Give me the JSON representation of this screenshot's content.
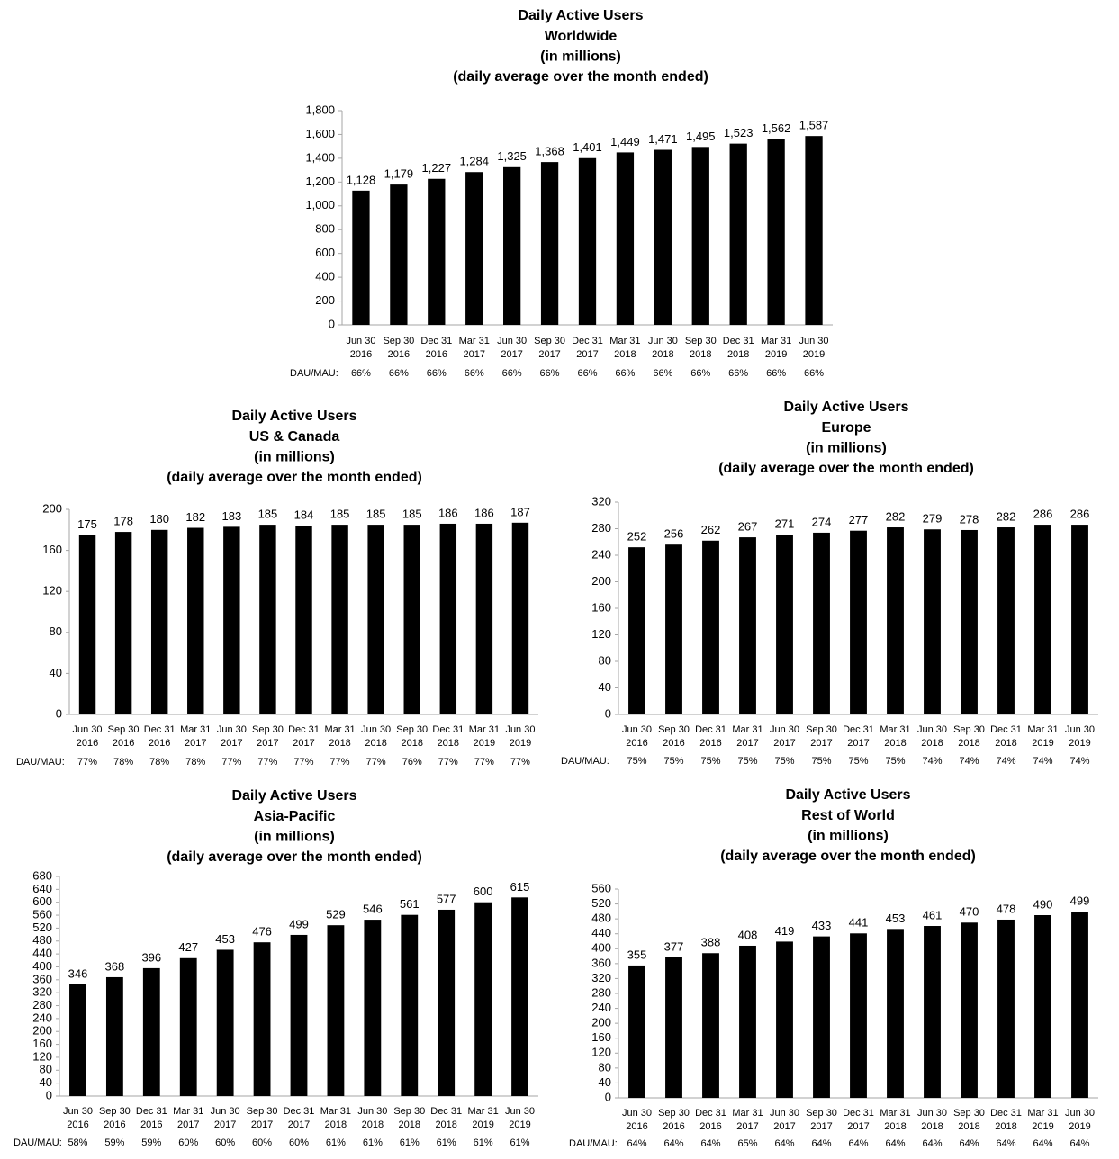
{
  "chart_data": [
    {
      "type": "bar",
      "title": [
        "Daily Active Users",
        "Worldwide",
        "(in millions)",
        "(daily average over the month ended)"
      ],
      "categories": [
        [
          "Jun 30",
          "2016"
        ],
        [
          "Sep 30",
          "2016"
        ],
        [
          "Dec 31",
          "2016"
        ],
        [
          "Mar 31",
          "2017"
        ],
        [
          "Jun 30",
          "2017"
        ],
        [
          "Sep 30",
          "2017"
        ],
        [
          "Dec 31",
          "2017"
        ],
        [
          "Mar 31",
          "2018"
        ],
        [
          "Jun 30",
          "2018"
        ],
        [
          "Sep 30",
          "2018"
        ],
        [
          "Dec 31",
          "2018"
        ],
        [
          "Mar 31",
          "2019"
        ],
        [
          "Jun 30",
          "2019"
        ]
      ],
      "values": [
        1128,
        1179,
        1227,
        1284,
        1325,
        1368,
        1401,
        1449,
        1471,
        1495,
        1523,
        1562,
        1587
      ],
      "value_labels": [
        "1,128",
        "1,179",
        "1,227",
        "1,284",
        "1,325",
        "1,368",
        "1,401",
        "1,449",
        "1,471",
        "1,495",
        "1,523",
        "1,562",
        "1,587"
      ],
      "color": "#000000",
      "ylim": [
        0,
        1800
      ],
      "yticks": [
        0,
        200,
        400,
        600,
        800,
        {
          "value": 1000,
          "label": "1,000"
        },
        {
          "value": 1200,
          "label": "1,200"
        },
        {
          "value": 1400,
          "label": "1,400"
        },
        {
          "value": 1600,
          "label": "1,600"
        },
        {
          "value": 1800,
          "label": "1,800"
        }
      ],
      "dau_mau": {
        "label": "DAU/MAU:",
        "values": [
          66,
          66,
          66,
          66,
          66,
          66,
          66,
          66,
          66,
          66,
          66,
          66,
          66
        ],
        "value_labels": [
          "66%",
          "66%",
          "66%",
          "66%",
          "66%",
          "66%",
          "66%",
          "66%",
          "66%",
          "66%",
          "66%",
          "66%",
          "66%"
        ]
      }
    },
    {
      "type": "bar",
      "title": [
        "Daily Active Users",
        "US & Canada",
        "(in millions)",
        "(daily average over the month ended)"
      ],
      "categories": [
        [
          "Jun 30",
          "2016"
        ],
        [
          "Sep 30",
          "2016"
        ],
        [
          "Dec 31",
          "2016"
        ],
        [
          "Mar 31",
          "2017"
        ],
        [
          "Jun 30",
          "2017"
        ],
        [
          "Sep 30",
          "2017"
        ],
        [
          "Dec 31",
          "2017"
        ],
        [
          "Mar 31",
          "2018"
        ],
        [
          "Jun 30",
          "2018"
        ],
        [
          "Sep 30",
          "2018"
        ],
        [
          "Dec 31",
          "2018"
        ],
        [
          "Mar 31",
          "2019"
        ],
        [
          "Jun 30",
          "2019"
        ]
      ],
      "values": [
        175,
        178,
        180,
        182,
        183,
        185,
        184,
        185,
        185,
        185,
        186,
        186,
        187
      ],
      "color": "#000000",
      "ylim": [
        0,
        200
      ],
      "yticks": [
        0,
        40,
        80,
        120,
        160,
        200
      ],
      "dau_mau": {
        "label": "DAU/MAU:",
        "values": [
          77,
          78,
          78,
          78,
          77,
          77,
          77,
          77,
          77,
          76,
          77,
          77,
          77
        ],
        "value_labels": [
          "77%",
          "78%",
          "78%",
          "78%",
          "77%",
          "77%",
          "77%",
          "77%",
          "77%",
          "76%",
          "77%",
          "77%",
          "77%"
        ]
      }
    },
    {
      "type": "bar",
      "title": [
        "Daily Active Users",
        "Europe",
        "(in millions)",
        "(daily average over the month ended)"
      ],
      "categories": [
        [
          "Jun 30",
          "2016"
        ],
        [
          "Sep 30",
          "2016"
        ],
        [
          "Dec 31",
          "2016"
        ],
        [
          "Mar 31",
          "2017"
        ],
        [
          "Jun 30",
          "2017"
        ],
        [
          "Sep 30",
          "2017"
        ],
        [
          "Dec 31",
          "2017"
        ],
        [
          "Mar 31",
          "2018"
        ],
        [
          "Jun 30",
          "2018"
        ],
        [
          "Sep 30",
          "2018"
        ],
        [
          "Dec 31",
          "2018"
        ],
        [
          "Mar 31",
          "2019"
        ],
        [
          "Jun 30",
          "2019"
        ]
      ],
      "values": [
        252,
        256,
        262,
        267,
        271,
        274,
        277,
        282,
        279,
        278,
        282,
        286,
        286
      ],
      "color": "#000000",
      "ylim": [
        0,
        320
      ],
      "yticks": [
        0,
        40,
        80,
        120,
        160,
        200,
        240,
        280,
        320
      ],
      "dau_mau": {
        "label": "DAU/MAU:",
        "values": [
          75,
          75,
          75,
          75,
          75,
          75,
          75,
          75,
          74,
          74,
          74,
          74,
          74
        ],
        "value_labels": [
          "75%",
          "75%",
          "75%",
          "75%",
          "75%",
          "75%",
          "75%",
          "75%",
          "74%",
          "74%",
          "74%",
          "74%",
          "74%"
        ]
      }
    },
    {
      "type": "bar",
      "title": [
        "Daily Active Users",
        "Asia-Pacific",
        "(in millions)",
        "(daily average over the month ended)"
      ],
      "categories": [
        [
          "Jun 30",
          "2016"
        ],
        [
          "Sep 30",
          "2016"
        ],
        [
          "Dec 31",
          "2016"
        ],
        [
          "Mar 31",
          "2017"
        ],
        [
          "Jun 30",
          "2017"
        ],
        [
          "Sep 30",
          "2017"
        ],
        [
          "Dec 31",
          "2017"
        ],
        [
          "Mar 31",
          "2018"
        ],
        [
          "Jun 30",
          "2018"
        ],
        [
          "Sep 30",
          "2018"
        ],
        [
          "Dec 31",
          "2018"
        ],
        [
          "Mar 31",
          "2019"
        ],
        [
          "Jun 30",
          "2019"
        ]
      ],
      "values": [
        346,
        368,
        396,
        427,
        453,
        476,
        499,
        529,
        546,
        561,
        577,
        600,
        615
      ],
      "color": "#000000",
      "ylim": [
        0,
        680
      ],
      "yticks": [
        0,
        40,
        80,
        120,
        160,
        200,
        240,
        280,
        320,
        360,
        400,
        440,
        480,
        520,
        560,
        600,
        640,
        680
      ],
      "dau_mau": {
        "label": "DAU/MAU:",
        "values": [
          58,
          59,
          59,
          60,
          60,
          60,
          60,
          61,
          61,
          61,
          61,
          61,
          61
        ],
        "value_labels": [
          "58%",
          "59%",
          "59%",
          "60%",
          "60%",
          "60%",
          "60%",
          "61%",
          "61%",
          "61%",
          "61%",
          "61%",
          "61%"
        ]
      }
    },
    {
      "type": "bar",
      "title": [
        "Daily Active Users",
        "Rest of World",
        "(in millions)",
        "(daily average over the month ended)"
      ],
      "categories": [
        [
          "Jun 30",
          "2016"
        ],
        [
          "Sep 30",
          "2016"
        ],
        [
          "Dec 31",
          "2016"
        ],
        [
          "Mar 31",
          "2017"
        ],
        [
          "Jun 30",
          "2017"
        ],
        [
          "Sep 30",
          "2017"
        ],
        [
          "Dec 31",
          "2017"
        ],
        [
          "Mar 31",
          "2018"
        ],
        [
          "Jun 30",
          "2018"
        ],
        [
          "Sep 30",
          "2018"
        ],
        [
          "Dec 31",
          "2018"
        ],
        [
          "Mar 31",
          "2019"
        ],
        [
          "Jun 30",
          "2019"
        ]
      ],
      "values": [
        355,
        377,
        388,
        408,
        419,
        433,
        441,
        453,
        461,
        470,
        478,
        490,
        499
      ],
      "color": "#000000",
      "ylim": [
        0,
        560
      ],
      "yticks": [
        0,
        40,
        80,
        120,
        160,
        200,
        240,
        280,
        320,
        360,
        400,
        440,
        480,
        520,
        560
      ],
      "dau_mau": {
        "label": "DAU/MAU:",
        "values": [
          64,
          64,
          64,
          65,
          64,
          64,
          64,
          64,
          64,
          64,
          64,
          64,
          64
        ],
        "value_labels": [
          "64%",
          "64%",
          "64%",
          "65%",
          "64%",
          "64%",
          "64%",
          "64%",
          "64%",
          "64%",
          "64%",
          "64%",
          "64%"
        ]
      }
    }
  ]
}
